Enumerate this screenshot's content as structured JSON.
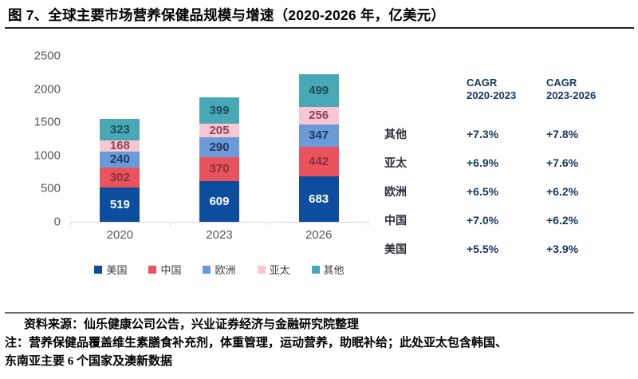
{
  "title": "图 7、全球主要市场营养保健品规模与增速（2020-2026 年，亿美元）",
  "chart_data": {
    "type": "bar",
    "stacked": true,
    "title": "全球主要市场营养保健品规模与增速",
    "unit": "亿美元",
    "categories": [
      "2020",
      "2023",
      "2026"
    ],
    "series": [
      {
        "name": "美国",
        "color": "#0C4D9E",
        "label_color": "#FFFFFF",
        "values": [
          519,
          609,
          683
        ]
      },
      {
        "name": "中国",
        "color": "#E9535D",
        "label_color": "#8B3038",
        "values": [
          302,
          370,
          442
        ]
      },
      {
        "name": "欧洲",
        "color": "#6B9AD8",
        "label_color": "#1F3864",
        "values": [
          240,
          290,
          347
        ]
      },
      {
        "name": "亚太",
        "color": "#F9C6D3",
        "label_color": "#8A4558",
        "values": [
          168,
          205,
          256
        ]
      },
      {
        "name": "其他",
        "color": "#49A8B5",
        "label_color": "#1F4E5F",
        "values": [
          323,
          399,
          499
        ]
      }
    ],
    "ylim": [
      0,
      2500
    ],
    "yticks": [
      "0",
      "500",
      "1000",
      "1500",
      "2000",
      "2500"
    ],
    "grid": false,
    "legend_position": "bottom"
  },
  "cagr_table": {
    "columns": [
      {
        "line1": "CAGR",
        "line2": "2020-2023"
      },
      {
        "line1": "CAGR",
        "line2": "2023-2026"
      }
    ],
    "rows": [
      {
        "label": "其他",
        "cagr_2020_2023": "+7.3%",
        "cagr_2023_2026": "+7.8%"
      },
      {
        "label": "亚太",
        "cagr_2020_2023": "+6.9%",
        "cagr_2023_2026": "+7.6%"
      },
      {
        "label": "欧洲",
        "cagr_2020_2023": "+6.5%",
        "cagr_2023_2026": "+6.2%"
      },
      {
        "label": "中国",
        "cagr_2020_2023": "+7.0%",
        "cagr_2023_2026": "+6.2%"
      },
      {
        "label": "美国",
        "cagr_2020_2023": "+5.5%",
        "cagr_2023_2026": "+3.9%"
      }
    ]
  },
  "footer": {
    "source": "资料来源：仙乐健康公司公告，兴业证券经济与金融研究院整理",
    "note_lines": [
      "注：营养保健品覆盖维生素膳食补充剂，体重管理，运动营养，助眠补给；此处亚太包含韩国、",
      "东南亚主要 6 个国家及澳新数据"
    ]
  },
  "colors": {
    "axis_label": "#595959",
    "axis_line": "#D6D6D6",
    "table_text": "#17365D",
    "legend_text": "#404040",
    "title_rule": "#262626",
    "footer_rule": "#6B6B6B"
  }
}
